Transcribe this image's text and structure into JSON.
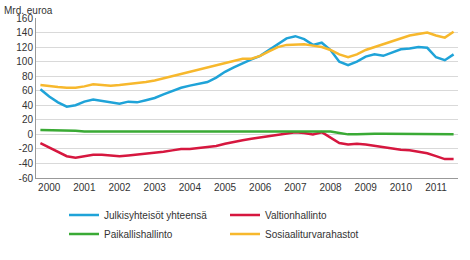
{
  "chart_data": {
    "type": "line",
    "ylabel": "Mrd. euroa",
    "categories": [
      null,
      "2000",
      null,
      null,
      null,
      "2001",
      null,
      null,
      null,
      "2002",
      null,
      null,
      null,
      "2003",
      null,
      null,
      null,
      "2004",
      null,
      null,
      null,
      "2005",
      null,
      null,
      null,
      "2006",
      null,
      null,
      null,
      "2007",
      null,
      null,
      null,
      "2008",
      null,
      null,
      null,
      "2009",
      null,
      null,
      null,
      "2010",
      null,
      null,
      null,
      "2011",
      null,
      null
    ],
    "series": [
      {
        "name": "Julkisyhteisöt yhteensä",
        "color": "#1fa3d8",
        "values": [
          62,
          52,
          44,
          38,
          40,
          45,
          48,
          46,
          44,
          42,
          45,
          44,
          47,
          50,
          55,
          60,
          64,
          67,
          69,
          72,
          78,
          86,
          92,
          98,
          103,
          108,
          116,
          124,
          132,
          135,
          131,
          123,
          126,
          116,
          100,
          95,
          100,
          107,
          110,
          108,
          112,
          117,
          118,
          120,
          119,
          106,
          102,
          110
        ]
      },
      {
        "name": "Valtionhallinto",
        "color": "#d6173f",
        "values": [
          -12,
          -18,
          -25,
          -30,
          -32,
          -30,
          -28,
          -28,
          -29,
          -30,
          -29,
          -28,
          -27,
          -26,
          -24,
          -22,
          -20,
          -20,
          -19,
          -18,
          -16,
          -13,
          -10,
          -8,
          -6,
          -4,
          -2,
          0,
          2,
          3,
          2,
          0,
          3,
          -5,
          -12,
          -14,
          -13,
          -14,
          -16,
          -18,
          -20,
          -21,
          -22,
          -24,
          -26,
          -30,
          -34,
          -34
        ]
      },
      {
        "name": "Paikallishallinto",
        "color": "#3aaa35",
        "values": [
          6,
          6,
          5,
          5,
          5,
          4,
          4,
          4,
          4,
          4,
          4,
          4,
          4,
          4,
          4,
          3,
          3,
          3,
          3,
          3,
          3,
          3,
          3,
          3,
          3,
          3,
          3,
          3,
          3,
          3,
          3,
          4,
          4,
          4,
          2,
          0,
          0,
          1,
          1,
          1,
          1,
          1,
          0,
          0,
          0,
          0,
          0,
          0
        ]
      },
      {
        "name": "Sosiaaliturvarahastot",
        "color": "#f7b82d",
        "values": [
          68,
          66,
          65,
          64,
          64,
          66,
          69,
          68,
          67,
          68,
          69,
          70,
          72,
          74,
          77,
          80,
          83,
          86,
          89,
          92,
          95,
          98,
          101,
          104,
          104,
          108,
          114,
          120,
          123,
          124,
          124,
          122,
          120,
          116,
          110,
          106,
          110,
          116,
          120,
          124,
          128,
          132,
          136,
          138,
          140,
          136,
          133,
          141
        ]
      }
    ],
    "ylim": [
      -60,
      160
    ],
    "yticks": [
      -60,
      -40,
      -20,
      0,
      20,
      40,
      60,
      80,
      100,
      120,
      140,
      160
    ],
    "grid": true,
    "legend": "bottom"
  }
}
